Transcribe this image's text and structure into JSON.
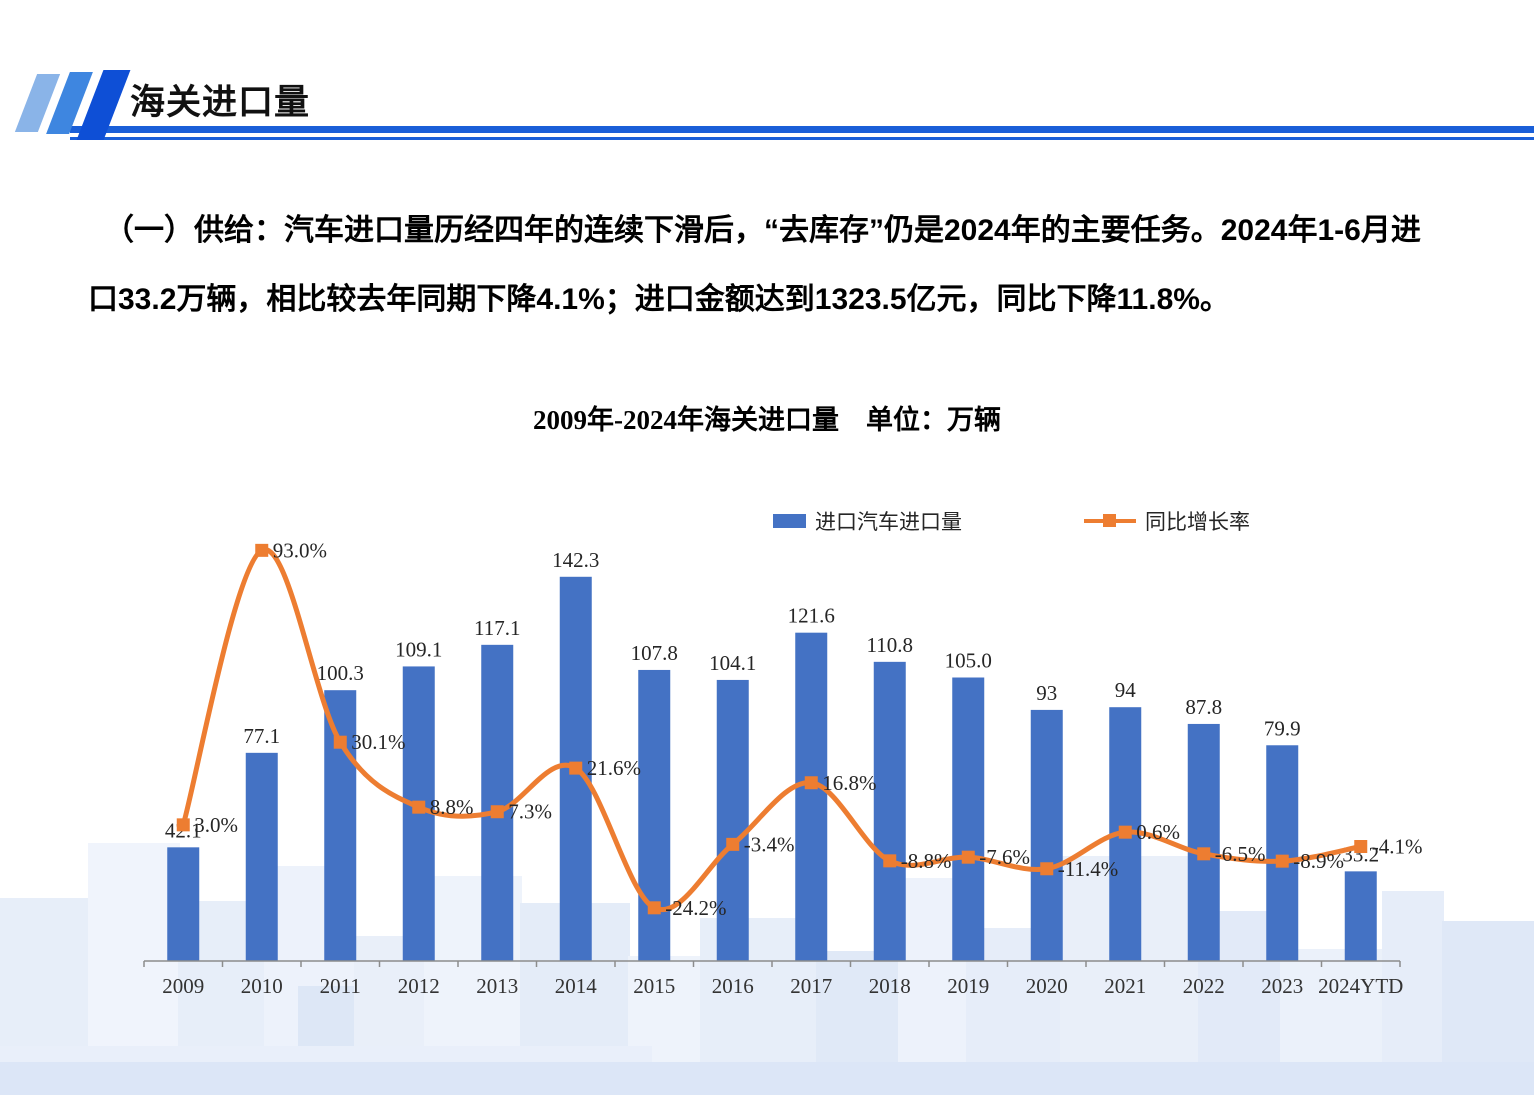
{
  "header": {
    "title_primary": "海关",
    "title_secondary": "进口量"
  },
  "intro": {
    "lines": [
      "（一）供给：汽车进口量历经四年的连续下滑后，“去库存”仍是2024年的主要任务。2024年1-6月进",
      "口33.2万辆，相比较去年同期下降4.1%；进口金额达到1323.5亿元，同比下降11.8%。"
    ]
  },
  "chart": {
    "title": "2009年-2024年海关进口量　单位：万辆"
  },
  "chart_data": {
    "type": "bar",
    "subtype": "combo-bar-line",
    "title": "2009年-2024年海关进口量 单位：万辆",
    "unit": "万辆",
    "gridlines": false,
    "value_axis_visible": false,
    "legend_position": "top",
    "categories": [
      "2009",
      "2010",
      "2011",
      "2012",
      "2013",
      "2014",
      "2015",
      "2016",
      "2017",
      "2018",
      "2019",
      "2020",
      "2021",
      "2022",
      "2023",
      "2024YTD"
    ],
    "series": [
      {
        "name": "进口汽车进口量",
        "chart": "bar",
        "color": "#4472C4",
        "values": [
          42.1,
          77.1,
          100.3,
          109.1,
          117.1,
          142.3,
          107.8,
          104.1,
          121.6,
          110.8,
          105.0,
          93,
          94,
          87.8,
          79.9,
          33.2
        ],
        "labels": [
          "42.1",
          "77.1",
          "100.3",
          "109.1",
          "117.1",
          "142.3",
          "107.8",
          "104.1",
          "121.6",
          "110.8",
          "105.0",
          "93",
          "94",
          "87.8",
          "79.9",
          "33.2"
        ]
      },
      {
        "name": "同比增长率",
        "chart": "line",
        "color": "#ED7D31",
        "values_pct": [
          3.0,
          93.0,
          30.1,
          8.8,
          7.3,
          21.6,
          -24.2,
          -3.4,
          16.8,
          -8.8,
          -7.6,
          -11.4,
          0.6,
          -6.5,
          -8.9,
          -4.1
        ],
        "labels": [
          "3.0%",
          "93.0%",
          "30.1%",
          "8.8%",
          "7.3%",
          "21.6%",
          "-24.2%",
          "-3.4%",
          "16.8%",
          "-8.8%",
          "-7.6%",
          "-11.4%",
          "0.6%",
          "-6.5%",
          "-8.9%",
          "-4.1%"
        ]
      }
    ]
  }
}
